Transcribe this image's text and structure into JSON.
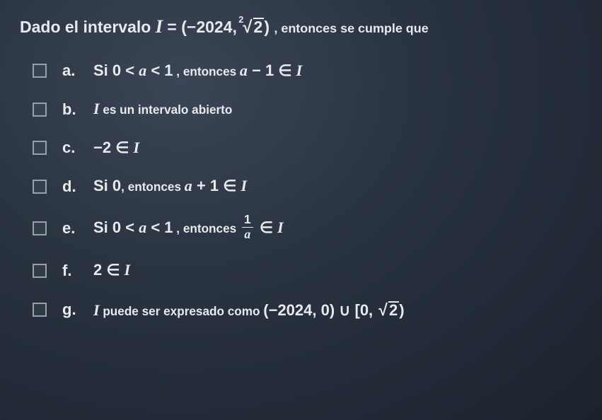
{
  "question": {
    "prefix": "Dado el intervalo ",
    "interval_var": "I",
    "equals": " = ",
    "interval_open": "(−2024, ",
    "root_index": "2",
    "root_radicand": "2",
    "interval_close": ")",
    "suffix": ", entonces se cumple que"
  },
  "options": [
    {
      "letter": "a.",
      "pre": "Si ",
      "cond": "0 < ",
      "a": "a",
      "cond2": " < 1",
      "mid": " , entonces ",
      "a2": "a",
      "expr": " − 1 ∈ ",
      "I": "I"
    },
    {
      "letter": "b.",
      "I": "I",
      "text": " es un intervalo abierto"
    },
    {
      "letter": "c.",
      "expr": "−2 ∈ ",
      "I": "I"
    },
    {
      "letter": "d.",
      "pre": "Si ",
      "zero": "0",
      "mid": ", entonces ",
      "a": "a",
      "expr": " + 1 ∈ ",
      "I": "I"
    },
    {
      "letter": "e.",
      "pre": "Si ",
      "cond": "0 < ",
      "a": "a",
      "cond2": " < 1",
      "mid": " , entonces ",
      "frac_num": "1",
      "frac_den": "a",
      "in": " ∈ ",
      "I": "I"
    },
    {
      "letter": "f.",
      "expr": "2 ∈ ",
      "I": "I"
    },
    {
      "letter": "g.",
      "I": "I",
      "text": " puede ser expresado como ",
      "set1": "(−2024, 0) ∪ [0, ",
      "root_radicand": "2",
      "close": ")"
    }
  ]
}
